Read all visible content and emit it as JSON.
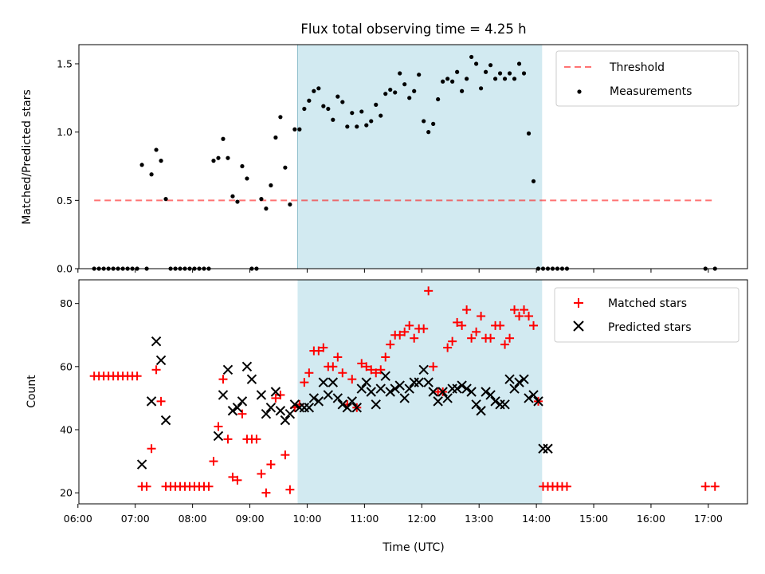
{
  "chart_data": [
    {
      "type": "scatter",
      "title": "Flux total observing time = 4.25 h",
      "xlabel": "",
      "ylabel": "Matched/Predicted stars",
      "xlim": [
        "06:01",
        "17:41"
      ],
      "ylim": [
        0,
        1.64
      ],
      "yticks": [
        0.0,
        0.5,
        1.0,
        1.5
      ],
      "ytick_labels": [
        "0.0",
        "0.5",
        "1.0",
        "1.5"
      ],
      "xtick_labels_shown": false,
      "shaded_span": {
        "x0": "09:50",
        "x1": "14:06",
        "color": "#add8e6"
      },
      "legend": {
        "position": "upper right",
        "entries": [
          "Threshold",
          "Measurements"
        ]
      },
      "threshold": {
        "name": "Threshold",
        "value": 0.5,
        "x0": "06:17",
        "x1": "17:06",
        "color": "#ff0000",
        "style": "dashed"
      },
      "series": [
        {
          "name": "Measurements",
          "color": "#000000",
          "x": [
            "06:17",
            "06:22",
            "06:27",
            "06:32",
            "06:37",
            "06:42",
            "06:47",
            "06:52",
            "06:57",
            "07:02",
            "07:07",
            "07:12",
            "07:17",
            "07:22",
            "07:27",
            "07:32",
            "07:37",
            "07:42",
            "07:47",
            "07:52",
            "07:57",
            "08:02",
            "08:07",
            "08:12",
            "08:17",
            "08:22",
            "08:27",
            "08:32",
            "08:37",
            "08:42",
            "08:47",
            "08:52",
            "08:57",
            "09:02",
            "09:07",
            "09:12",
            "09:17",
            "09:22",
            "09:27",
            "09:32",
            "09:37",
            "09:42",
            "09:47",
            "09:52",
            "09:57",
            "10:02",
            "10:07",
            "10:12",
            "10:17",
            "10:22",
            "10:27",
            "10:32",
            "10:37",
            "10:42",
            "10:47",
            "10:52",
            "10:57",
            "11:02",
            "11:07",
            "11:12",
            "11:17",
            "11:22",
            "11:27",
            "11:32",
            "11:37",
            "11:42",
            "11:47",
            "11:52",
            "11:57",
            "12:02",
            "12:07",
            "12:12",
            "12:17",
            "12:22",
            "12:27",
            "12:32",
            "12:37",
            "12:42",
            "12:47",
            "12:52",
            "12:57",
            "13:02",
            "13:07",
            "13:12",
            "13:17",
            "13:22",
            "13:27",
            "13:32",
            "13:37",
            "13:42",
            "13:47",
            "13:52",
            "13:57",
            "14:02",
            "14:07",
            "14:12",
            "14:17",
            "14:22",
            "14:27",
            "14:32",
            "16:57",
            "17:07"
          ],
          "y": [
            0,
            0,
            0,
            0,
            0,
            0,
            0,
            0,
            0,
            0,
            0.76,
            0,
            0.69,
            0.87,
            0.79,
            0.51,
            0,
            0,
            0,
            0,
            0,
            0,
            0,
            0,
            0,
            0.79,
            0.81,
            0.95,
            0.81,
            0.53,
            0.49,
            0.75,
            0.66,
            0,
            0,
            0.51,
            0.44,
            0.61,
            0.96,
            1.11,
            0.74,
            0.47,
            1.02,
            1.02,
            1.17,
            1.23,
            1.3,
            1.32,
            1.19,
            1.17,
            1.09,
            1.26,
            1.22,
            1.04,
            1.14,
            1.04,
            1.15,
            1.05,
            1.08,
            1.2,
            1.12,
            1.28,
            1.31,
            1.29,
            1.43,
            1.35,
            1.25,
            1.3,
            1.42,
            1.08,
            1.0,
            1.06,
            1.24,
            1.37,
            1.39,
            1.37,
            1.44,
            1.3,
            1.39,
            1.55,
            1.5,
            1.32,
            1.44,
            1.49,
            1.39,
            1.43,
            1.39,
            1.43,
            1.39,
            1.5,
            1.43,
            0.99,
            0.64,
            0,
            0,
            0,
            0,
            0,
            0,
            0,
            0,
            0
          ]
        }
      ]
    },
    {
      "type": "scatter",
      "title": "",
      "xlabel": "Time (UTC)",
      "ylabel": "Count",
      "xlim": [
        "06:01",
        "17:41"
      ],
      "ylim": [
        16.5,
        87.5
      ],
      "yticks": [
        20,
        40,
        60,
        80
      ],
      "ytick_labels": [
        "20",
        "40",
        "60",
        "80"
      ],
      "xtick_labels": [
        "06:00",
        "07:00",
        "08:00",
        "09:00",
        "10:00",
        "11:00",
        "12:00",
        "13:00",
        "14:00",
        "15:00",
        "16:00",
        "17:00"
      ],
      "shaded_span": {
        "x0": "09:50",
        "x1": "14:06",
        "color": "#add8e6"
      },
      "legend": {
        "position": "upper right",
        "entries": [
          "Matched stars",
          "Predicted stars"
        ]
      },
      "series": [
        {
          "name": "Matched stars",
          "color": "#ff0000",
          "marker": "+",
          "x": [
            "06:17",
            "06:22",
            "06:27",
            "06:32",
            "06:37",
            "06:42",
            "06:47",
            "06:52",
            "06:57",
            "07:02",
            "07:07",
            "07:12",
            "07:17",
            "07:22",
            "07:27",
            "07:32",
            "07:37",
            "07:42",
            "07:47",
            "07:52",
            "07:57",
            "08:02",
            "08:07",
            "08:12",
            "08:17",
            "08:22",
            "08:27",
            "08:32",
            "08:37",
            "08:42",
            "08:47",
            "08:52",
            "08:57",
            "09:02",
            "09:07",
            "09:12",
            "09:17",
            "09:22",
            "09:27",
            "09:32",
            "09:37",
            "09:42",
            "09:47",
            "09:52",
            "09:57",
            "10:02",
            "10:07",
            "10:12",
            "10:17",
            "10:22",
            "10:27",
            "10:32",
            "10:37",
            "10:42",
            "10:47",
            "10:52",
            "10:57",
            "11:02",
            "11:07",
            "11:12",
            "11:17",
            "11:22",
            "11:27",
            "11:32",
            "11:37",
            "11:42",
            "11:47",
            "11:52",
            "11:57",
            "12:02",
            "12:07",
            "12:12",
            "12:17",
            "12:22",
            "12:27",
            "12:32",
            "12:37",
            "12:42",
            "12:47",
            "12:52",
            "12:57",
            "13:02",
            "13:07",
            "13:12",
            "13:17",
            "13:22",
            "13:27",
            "13:32",
            "13:37",
            "13:42",
            "13:47",
            "13:52",
            "13:57",
            "14:02",
            "14:07",
            "14:12",
            "14:17",
            "14:22",
            "14:27",
            "14:32",
            "16:57",
            "17:07"
          ],
          "y": [
            57,
            57,
            57,
            57,
            57,
            57,
            57,
            57,
            57,
            57,
            22,
            22,
            34,
            59,
            49,
            22,
            22,
            22,
            22,
            22,
            22,
            22,
            22,
            22,
            22,
            30,
            41,
            56,
            37,
            25,
            24,
            45,
            37,
            37,
            37,
            26,
            20,
            29,
            50,
            51,
            32,
            21,
            47,
            48,
            55,
            58,
            65,
            65,
            66,
            60,
            60,
            63,
            58,
            48,
            56,
            47,
            61,
            60,
            59,
            58,
            59,
            63,
            67,
            70,
            70,
            71,
            73,
            69,
            72,
            72,
            84,
            60,
            52,
            52,
            66,
            68,
            74,
            73,
            78,
            69,
            71,
            76,
            69,
            69,
            73,
            73,
            67,
            69,
            78,
            76,
            78,
            76,
            73,
            49,
            22,
            22,
            22,
            22,
            22,
            22,
            22,
            22
          ]
        },
        {
          "name": "Predicted stars",
          "color": "#000000",
          "marker": "x",
          "x": [
            "07:07",
            "07:17",
            "07:22",
            "07:27",
            "07:32",
            "08:27",
            "08:32",
            "08:37",
            "08:42",
            "08:47",
            "08:52",
            "08:57",
            "09:02",
            "09:12",
            "09:17",
            "09:22",
            "09:27",
            "09:32",
            "09:37",
            "09:42",
            "09:47",
            "09:52",
            "09:57",
            "10:02",
            "10:07",
            "10:12",
            "10:17",
            "10:22",
            "10:27",
            "10:32",
            "10:37",
            "10:42",
            "10:47",
            "10:52",
            "10:57",
            "11:02",
            "11:07",
            "11:12",
            "11:17",
            "11:22",
            "11:27",
            "11:32",
            "11:37",
            "11:42",
            "11:47",
            "11:52",
            "11:57",
            "12:02",
            "12:07",
            "12:12",
            "12:17",
            "12:22",
            "12:27",
            "12:32",
            "12:37",
            "12:42",
            "12:47",
            "12:52",
            "12:57",
            "13:02",
            "13:07",
            "13:12",
            "13:17",
            "13:22",
            "13:27",
            "13:32",
            "13:37",
            "13:42",
            "13:47",
            "13:52",
            "13:57",
            "14:02",
            "14:07",
            "14:12"
          ],
          "y": [
            29,
            49,
            68,
            62,
            43,
            38,
            51,
            59,
            46,
            47,
            49,
            60,
            56,
            51,
            45,
            47,
            52,
            46,
            43,
            45,
            48,
            47,
            47,
            47,
            50,
            49,
            55,
            51,
            55,
            50,
            48,
            47,
            49,
            47,
            53,
            55,
            52,
            48,
            53,
            57,
            52,
            53,
            54,
            50,
            53,
            55,
            55,
            59,
            55,
            52,
            49,
            52,
            50,
            53,
            53,
            54,
            53,
            52,
            48,
            46,
            52,
            51,
            49,
            48,
            48,
            56,
            53,
            55,
            56,
            50,
            51,
            49,
            34,
            34
          ]
        }
      ]
    }
  ]
}
